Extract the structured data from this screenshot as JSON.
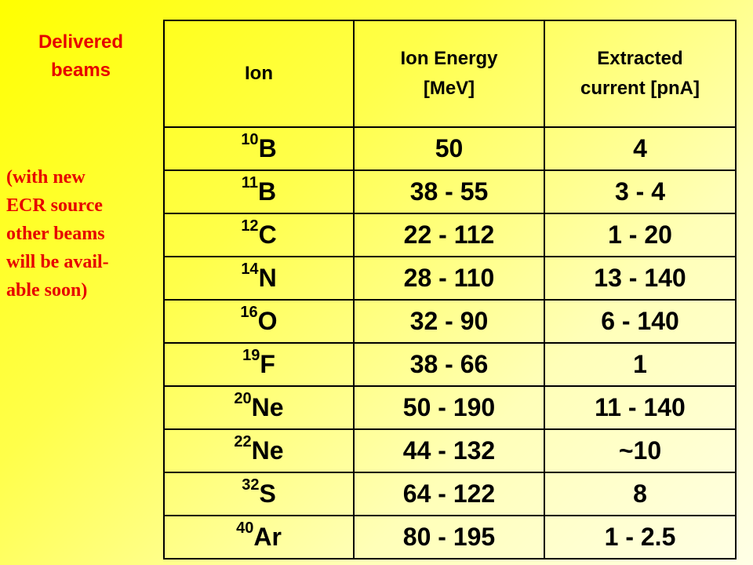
{
  "title": [
    "Delivered",
    "beams"
  ],
  "note": [
    "(with new",
    "ECR source",
    "other beams",
    "will be avail-",
    "able soon)"
  ],
  "table": {
    "headers": {
      "ion": "Ion",
      "energy": [
        "Ion Energy",
        "[MeV]"
      ],
      "current": [
        "Extracted",
        "current [pnA]"
      ]
    },
    "rows": [
      {
        "mass": "10",
        "element": "B",
        "energy": "50",
        "current": "4"
      },
      {
        "mass": "11",
        "element": "B",
        "energy": "38 - 55",
        "current": "3 - 4"
      },
      {
        "mass": "12",
        "element": "C",
        "energy": "22 - 112",
        "current": "1 - 20"
      },
      {
        "mass": "14",
        "element": "N",
        "energy": "28 - 110",
        "current": "13 - 140"
      },
      {
        "mass": "16",
        "element": "O",
        "energy": "32 - 90",
        "current": "6 - 140"
      },
      {
        "mass": "19",
        "element": "F",
        "energy": "38 - 66",
        "current": "1"
      },
      {
        "mass": "20",
        "element": "Ne",
        "energy": "50 - 190",
        "current": "11 - 140"
      },
      {
        "mass": "22",
        "element": "Ne",
        "energy": "44 - 132",
        "current": "~10"
      },
      {
        "mass": "32",
        "element": "S",
        "energy": "64 - 122",
        "current": "8"
      },
      {
        "mass": "40",
        "element": "Ar",
        "energy": "80 - 195",
        "current": "1 - 2.5"
      }
    ]
  },
  "colors": {
    "background": "#ffff00",
    "accent_text": "#e60000",
    "table_text": "#000000"
  }
}
